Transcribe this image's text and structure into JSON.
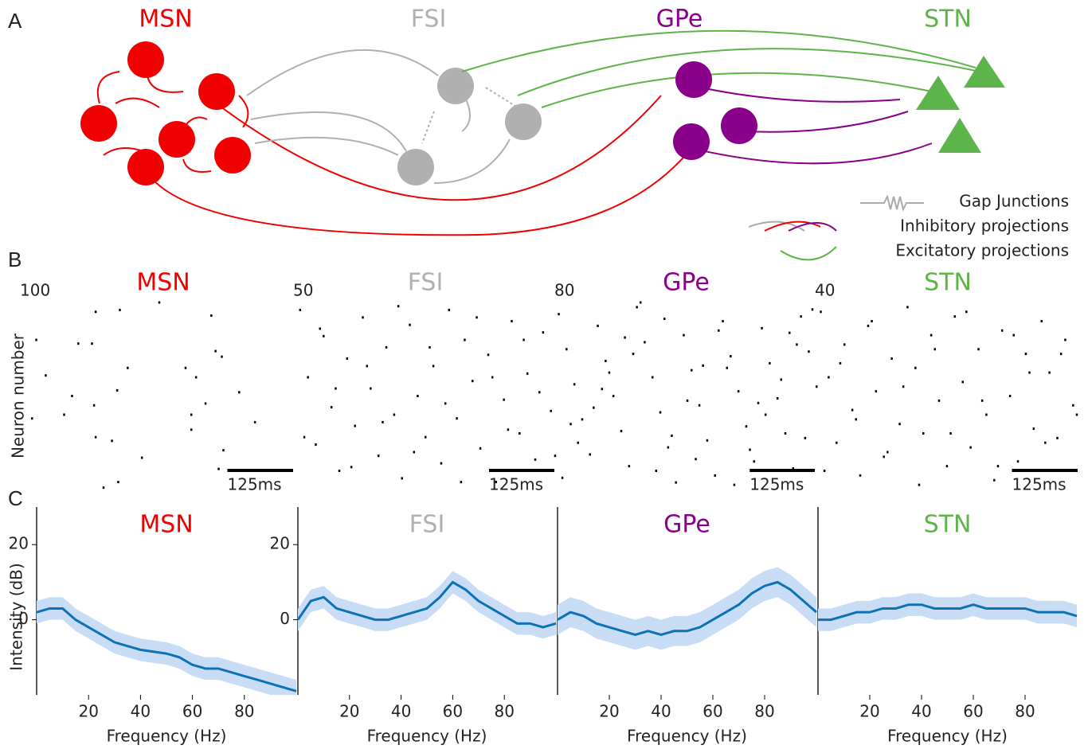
{
  "panel_labels": [
    "A",
    "B",
    "C"
  ],
  "diagram": {
    "populations": [
      {
        "label": "MSN",
        "color": "#f00000"
      },
      {
        "label": "FSI",
        "color": "#b0b0b0"
      },
      {
        "label": "GPe",
        "color": "#8b008b"
      },
      {
        "label": "STN",
        "color": "#5db44a"
      }
    ],
    "legend": [
      "Gap Junctions",
      "Inhibitory projections",
      "Excitatory projections"
    ]
  },
  "chart_data": [
    {
      "type": "scatter",
      "title": "MSN",
      "color": "#f00000",
      "ylabel": "Neuron number",
      "xlim": [
        0,
        500
      ],
      "ylim": [
        0,
        100
      ],
      "scale_bar": {
        "value": 125,
        "label": "125ms"
      },
      "x": [
        167,
        242,
        121,
        341,
        8,
        88,
        114,
        349,
        361,
        182,
        292,
        26,
        312,
        76,
        162,
        394,
        118,
        330,
        0,
        61,
        303,
        424,
        303,
        121,
        152,
        364,
        209,
        355,
        164,
        136
      ],
      "y": [
        96,
        100,
        95,
        93,
        80,
        78,
        78,
        74,
        71,
        65,
        65,
        61,
        60,
        50,
        53,
        52,
        45,
        46,
        38,
        40,
        40,
        36,
        32,
        28,
        26,
        21,
        17,
        11,
        4,
        1
      ]
    },
    {
      "type": "scatter",
      "title": "FSI",
      "color": "#b0b0b0",
      "xlim": [
        0,
        500
      ],
      "ylim": [
        0,
        50
      ],
      "scale_bar": {
        "value": 125,
        "label": "125ms"
      },
      "x": [
        10,
        25,
        40,
        55,
        70,
        85,
        100,
        115,
        130,
        145,
        160,
        175,
        190,
        205,
        220,
        235,
        250,
        265,
        280,
        295,
        310,
        325,
        340,
        355,
        370,
        385,
        400,
        415,
        430,
        445,
        460,
        475,
        490,
        18,
        48,
        78,
        108,
        138,
        168,
        198,
        228,
        258,
        288,
        318,
        348,
        378,
        408,
        438,
        468,
        498
      ],
      "y": [
        48,
        30,
        12,
        41,
        22,
        5,
        35,
        17,
        46,
        27,
        9,
        38,
        20,
        3,
        44,
        25,
        14,
        33,
        7,
        48,
        19,
        40,
        29,
        11,
        36,
        2,
        24,
        45,
        15,
        31,
        8,
        42,
        21,
        14,
        43,
        27,
        6,
        33,
        18,
        49,
        10,
        38,
        23,
        2,
        46,
        30,
        16,
        40,
        26,
        9
      ]
    },
    {
      "type": "scatter",
      "title": "GPe",
      "color": "#8b008b",
      "xlim": [
        0,
        500
      ],
      "ylim": [
        0,
        80
      ],
      "scale_bar": {
        "value": 125,
        "label": "125ms"
      },
      "x": [
        5,
        20,
        35,
        50,
        65,
        80,
        95,
        110,
        125,
        140,
        155,
        170,
        185,
        200,
        215,
        230,
        245,
        260,
        275,
        290,
        305,
        320,
        335,
        350,
        365,
        380,
        395,
        410,
        425,
        440,
        455,
        470,
        485,
        500,
        12,
        42,
        72,
        102,
        132,
        162,
        192,
        222,
        252,
        282,
        312,
        342,
        372,
        402,
        432,
        462,
        492,
        28,
        88,
        148,
        208,
        268,
        328,
        388,
        448,
        478
      ],
      "y": [
        75,
        60,
        45,
        30,
        15,
        70,
        55,
        40,
        25,
        10,
        78,
        63,
        48,
        33,
        18,
        3,
        66,
        51,
        36,
        21,
        6,
        72,
        57,
        42,
        27,
        12,
        69,
        54,
        39,
        24,
        9,
        74,
        59,
        44,
        5,
        20,
        35,
        50,
        65,
        80,
        8,
        23,
        38,
        53,
        68,
        2,
        17,
        32,
        47,
        62,
        77,
        28,
        43,
        58,
        73,
        13,
        52,
        37,
        67,
        22
      ]
    },
    {
      "type": "scatter",
      "title": "STN",
      "color": "#5db44a",
      "xlim": [
        0,
        500
      ],
      "ylim": [
        0,
        40
      ],
      "scale_bar": {
        "value": 125,
        "label": "125ms"
      },
      "x": [
        8,
        23,
        38,
        53,
        68,
        83,
        98,
        113,
        128,
        143,
        158,
        173,
        188,
        203,
        218,
        233,
        248,
        263,
        278,
        293,
        308,
        323,
        338,
        353,
        368,
        383,
        398,
        413,
        428,
        443,
        458,
        473,
        488,
        15,
        45,
        75,
        105,
        135,
        165,
        195,
        225,
        255,
        285,
        315,
        345,
        375,
        405,
        435,
        465,
        495
      ],
      "y": [
        38,
        24,
        10,
        31,
        17,
        3,
        35,
        21,
        7,
        28,
        14,
        39,
        26,
        12,
        33,
        19,
        5,
        37,
        23,
        9,
        30,
        16,
        2,
        34,
        20,
        6,
        29,
        13,
        36,
        25,
        11,
        32,
        18,
        4,
        27,
        15,
        36,
        8,
        22,
        1,
        30,
        12,
        38,
        19,
        5,
        33,
        25,
        10,
        29,
        16
      ]
    },
    {
      "type": "line",
      "title": "MSN",
      "color": "#f00000",
      "line_color": "#0a72b5",
      "band_color": "#c9dcf6",
      "ylabel": "Intensity (dB)",
      "xlabel": "Frequency (Hz)",
      "xlim": [
        0,
        100
      ],
      "ylim": [
        -20,
        30
      ],
      "xticks": [
        20,
        40,
        60,
        80
      ],
      "yticks": [
        0,
        20
      ],
      "x": [
        0,
        5,
        10,
        15,
        20,
        25,
        30,
        35,
        40,
        45,
        50,
        55,
        60,
        65,
        70,
        75,
        80,
        85,
        90,
        95,
        100
      ],
      "values": [
        2,
        3,
        3,
        0,
        -2,
        -4,
        -6,
        -7,
        -8,
        -8.5,
        -9,
        -10,
        -12,
        -13,
        -13,
        -14,
        -15,
        -16,
        -17,
        -18,
        -19
      ],
      "band_low": [
        -1,
        0,
        0,
        -3,
        -5,
        -7,
        -9,
        -10,
        -11,
        -11.5,
        -12,
        -13,
        -15,
        -16,
        -16,
        -17,
        -18,
        -19,
        -20,
        -20,
        -20
      ],
      "band_high": [
        5,
        6,
        6,
        3,
        1,
        -1,
        -3,
        -4,
        -5,
        -5.5,
        -6,
        -7,
        -9,
        -10,
        -10,
        -11,
        -12,
        -13,
        -14,
        -15,
        -16
      ]
    },
    {
      "type": "line",
      "title": "FSI",
      "color": "#b0b0b0",
      "line_color": "#0a72b5",
      "band_color": "#c9dcf6",
      "xlabel": "Frequency (Hz)",
      "xlim": [
        0,
        100
      ],
      "ylim": [
        -20,
        30
      ],
      "xticks": [
        20,
        40,
        60,
        80
      ],
      "yticks": [
        0,
        20
      ],
      "x": [
        0,
        5,
        10,
        15,
        20,
        25,
        30,
        35,
        40,
        45,
        50,
        55,
        60,
        65,
        70,
        75,
        80,
        85,
        90,
        95,
        100
      ],
      "values": [
        0,
        5,
        6,
        3,
        2,
        1,
        0,
        0,
        1,
        2,
        3,
        6,
        10,
        8,
        5,
        3,
        1,
        -1,
        -1,
        -2,
        -1
      ],
      "band_low": [
        -3,
        2,
        3,
        0,
        -1,
        -2,
        -3,
        -3,
        -2,
        -1,
        0,
        3,
        7,
        5,
        2,
        0,
        -2,
        -4,
        -4,
        -5,
        -4
      ],
      "band_high": [
        3,
        8,
        9,
        6,
        5,
        4,
        3,
        3,
        4,
        5,
        6,
        9,
        13,
        11,
        8,
        6,
        4,
        2,
        2,
        1,
        2
      ]
    },
    {
      "type": "line",
      "title": "GPe",
      "color": "#8b008b",
      "line_color": "#0a72b5",
      "band_color": "#c9dcf6",
      "xlabel": "Frequency (Hz)",
      "xlim": [
        0,
        100
      ],
      "ylim": [
        -20,
        30
      ],
      "xticks": [
        20,
        40,
        60,
        80
      ],
      "x": [
        0,
        5,
        10,
        15,
        20,
        25,
        30,
        35,
        40,
        45,
        50,
        55,
        60,
        65,
        70,
        75,
        80,
        85,
        90,
        95,
        100
      ],
      "values": [
        0,
        2,
        1,
        -1,
        -2,
        -3,
        -4,
        -3,
        -4,
        -3,
        -3,
        -2,
        0,
        2,
        4,
        7,
        9,
        10,
        8,
        5,
        2
      ],
      "band_low": [
        -4,
        -2,
        -3,
        -5,
        -6,
        -7,
        -8,
        -7,
        -8,
        -7,
        -7,
        -6,
        -4,
        -2,
        0,
        3,
        5,
        6,
        4,
        1,
        -2
      ],
      "band_high": [
        4,
        6,
        5,
        3,
        2,
        1,
        0,
        1,
        0,
        1,
        1,
        2,
        4,
        6,
        8,
        11,
        13,
        14,
        12,
        9,
        6
      ]
    },
    {
      "type": "line",
      "title": "STN",
      "color": "#5db44a",
      "line_color": "#0a72b5",
      "band_color": "#c9dcf6",
      "xlabel": "Frequency (Hz)",
      "xlim": [
        0,
        100
      ],
      "ylim": [
        -20,
        30
      ],
      "xticks": [
        20,
        40,
        60,
        80
      ],
      "x": [
        0,
        5,
        10,
        15,
        20,
        25,
        30,
        35,
        40,
        45,
        50,
        55,
        60,
        65,
        70,
        75,
        80,
        85,
        90,
        95,
        100
      ],
      "values": [
        0,
        0,
        1,
        2,
        2,
        3,
        3,
        4,
        4,
        3,
        3,
        3,
        4,
        3,
        3,
        3,
        3,
        2,
        2,
        2,
        1
      ],
      "band_low": [
        -3,
        -3,
        -2,
        -1,
        -1,
        0,
        0,
        1,
        1,
        0,
        0,
        0,
        1,
        0,
        0,
        0,
        0,
        -1,
        -1,
        -1,
        -2
      ],
      "band_high": [
        3,
        3,
        4,
        5,
        5,
        6,
        6,
        7,
        7,
        6,
        6,
        6,
        7,
        6,
        6,
        6,
        6,
        5,
        5,
        5,
        4
      ]
    }
  ]
}
